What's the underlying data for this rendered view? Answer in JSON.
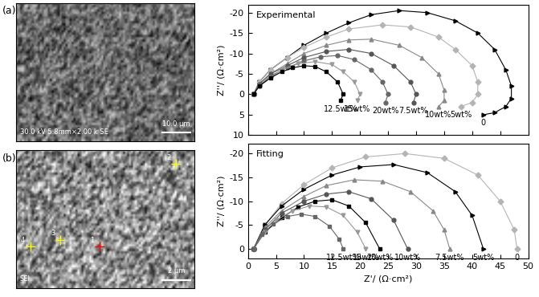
{
  "images": [
    {
      "label": "(a)",
      "caption": "30.0 kV 5.8mm×2.00 k SE",
      "scale_bar": "10.0 μm"
    },
    {
      "label": "(b)",
      "caption": "SEI",
      "scale_bar": "2 μm",
      "markers": [
        "1",
        "2",
        "3",
        "4"
      ]
    }
  ],
  "chart_data": [
    {
      "type": "line",
      "title": "Experimental",
      "ylabel": "Z''/ (Ω·cm²)",
      "xlim": [
        0,
        50
      ],
      "xticks": [
        0,
        5,
        10,
        15,
        20,
        25,
        30,
        35,
        40,
        45,
        50
      ],
      "ylim": [
        10,
        -22
      ],
      "yticks": [
        -20,
        -15,
        -10,
        -5,
        0,
        5,
        10
      ],
      "tick_labels": "y",
      "series": [
        {
          "name": "0",
          "color": "#000000",
          "marker": "triangle_right",
          "x": [
            1,
            2,
            4,
            7,
            10,
            14,
            18,
            22,
            27,
            32,
            37,
            41,
            44,
            46,
            47,
            47,
            46,
            44,
            42
          ],
          "values": [
            0,
            -3,
            -6,
            -9,
            -12,
            -15,
            -17.5,
            -19.5,
            -20.5,
            -20,
            -18,
            -15,
            -11,
            -6,
            -2,
            1,
            3,
            4.5,
            5
          ]
        },
        {
          "name": "5wt%",
          "color": "#b4b4b4",
          "marker": "diamond",
          "x": [
            1,
            2,
            4,
            7,
            10,
            14,
            18,
            24,
            29,
            34,
            37,
            40,
            41,
            41,
            40,
            38
          ],
          "values": [
            0,
            -3,
            -6,
            -9,
            -11.5,
            -14,
            -16,
            -17,
            -16.5,
            -14,
            -11,
            -7,
            -3,
            0,
            2,
            3
          ]
        },
        {
          "name": "10wt%",
          "color": "#888888",
          "marker": "triangle_up",
          "x": [
            1,
            2,
            4,
            7,
            10,
            14,
            18,
            22,
            27,
            31,
            34,
            35,
            35,
            34
          ],
          "values": [
            0,
            -2.5,
            -5,
            -7.5,
            -10,
            -12,
            -13.3,
            -13.5,
            -12,
            -9,
            -5,
            -1,
            1.5,
            3
          ]
        },
        {
          "name": "7.5wt%",
          "color": "#555555",
          "marker": "circle",
          "x": [
            1,
            2,
            4,
            7,
            10,
            14,
            18,
            22,
            26,
            29,
            30,
            29.5
          ],
          "values": [
            0,
            -2.5,
            -5,
            -7,
            -9,
            -10.5,
            -11,
            -10,
            -7,
            -3,
            0,
            2
          ]
        },
        {
          "name": "20wt%",
          "color": "#666666",
          "marker": "circle",
          "x": [
            1,
            2,
            4,
            7,
            10,
            13,
            16,
            19,
            22,
            24,
            25,
            24.5
          ],
          "values": [
            0,
            -2,
            -4.5,
            -6.5,
            -8.2,
            -9.2,
            -9.5,
            -8.5,
            -6,
            -3,
            0,
            2
          ]
        },
        {
          "name": "15wt%",
          "color": "#999999",
          "marker": "triangle_down",
          "x": [
            1,
            2,
            4,
            6,
            9,
            12,
            15,
            17,
            19,
            20,
            19.5
          ],
          "values": [
            0,
            -2,
            -4,
            -6,
            -7.5,
            -8,
            -7.3,
            -5.5,
            -3,
            0,
            1.5
          ]
        },
        {
          "name": "12.5wt%",
          "color": "#000000",
          "marker": "square",
          "x": [
            1,
            2,
            4,
            6,
            8,
            10,
            12,
            14,
            16,
            17,
            16.5
          ],
          "values": [
            0,
            -2,
            -4,
            -5.5,
            -6.5,
            -7,
            -6.8,
            -5.5,
            -3,
            0,
            1.5
          ]
        }
      ]
    },
    {
      "type": "line",
      "title": "Fitting",
      "xlabel": "Z'/ (Ω·cm²)",
      "ylabel": "Z''/ (Ω·cm²)",
      "xlim": [
        0,
        50
      ],
      "xticks": [
        0,
        5,
        10,
        15,
        20,
        25,
        30,
        35,
        40,
        45,
        50
      ],
      "ylim": [
        2,
        -22
      ],
      "yticks": [
        -20,
        -15,
        -10,
        -5,
        0
      ],
      "series": [
        {
          "name": "0",
          "color": "#b4b4b4",
          "marker": "diamond",
          "x": [
            1,
            3,
            6,
            10,
            15,
            21,
            28,
            35,
            41,
            45,
            47.5,
            48
          ],
          "values": [
            0,
            -5,
            -9.5,
            -13.5,
            -17,
            -19.3,
            -20,
            -19,
            -15.5,
            -10,
            -4,
            0
          ]
        },
        {
          "name": "5wt%",
          "color": "#000000",
          "marker": "triangle_right",
          "x": [
            1,
            3,
            6,
            10,
            15,
            20,
            26,
            32,
            37,
            40,
            42
          ],
          "values": [
            0,
            -5,
            -9,
            -12.5,
            -15.5,
            -17.2,
            -17.7,
            -16,
            -12,
            -7,
            0
          ]
        },
        {
          "name": "7.5wt%",
          "color": "#888888",
          "marker": "triangle_up",
          "x": [
            1,
            3,
            6,
            10,
            14,
            19,
            24,
            29,
            33,
            35,
            36
          ],
          "values": [
            0,
            -4.5,
            -8,
            -11,
            -13.3,
            -14.5,
            -14.2,
            -12,
            -8,
            -4,
            0
          ]
        },
        {
          "name": "10wt%",
          "color": "#555555",
          "marker": "circle",
          "x": [
            1,
            3,
            6,
            10,
            14,
            18,
            22,
            26,
            28.5
          ],
          "values": [
            0,
            -4,
            -7.5,
            -10,
            -11.5,
            -12,
            -10.5,
            -6,
            0
          ]
        },
        {
          "name": "20wt%",
          "color": "#000000",
          "marker": "square",
          "x": [
            1,
            3,
            6,
            9,
            12,
            15,
            18,
            21,
            23.5
          ],
          "values": [
            0,
            -3.5,
            -6.5,
            -8.8,
            -10,
            -10.3,
            -9,
            -5.5,
            0
          ]
        },
        {
          "name": "15wt%",
          "color": "#999999",
          "marker": "triangle_down",
          "x": [
            1,
            3,
            5,
            8,
            11,
            14,
            17,
            19.5,
            21
          ],
          "values": [
            0,
            -3.5,
            -6,
            -8,
            -9,
            -8.8,
            -7,
            -3.5,
            0
          ]
        },
        {
          "name": "12.5wt%",
          "color": "#666666",
          "marker": "square",
          "x": [
            1,
            2.5,
            4.5,
            7,
            9.5,
            12,
            14.5,
            16.3,
            17
          ],
          "values": [
            0,
            -3,
            -5.2,
            -6.8,
            -7.3,
            -6.8,
            -4.8,
            -2,
            0
          ]
        }
      ]
    }
  ]
}
